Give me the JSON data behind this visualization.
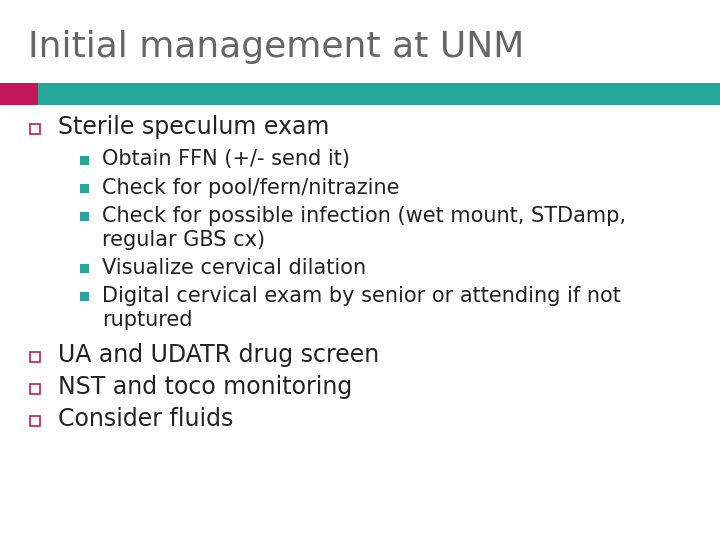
{
  "title": "Initial management at UNM",
  "title_color": "#666666",
  "title_fontsize": 26,
  "bar_pink": "#C2185B",
  "bar_teal": "#26A69A",
  "background_color": "#ffffff",
  "bullet_color": "#555555",
  "text_color": "#222222",
  "subbullet_color": "#26A69A",
  "main_bullet_char": "□",
  "sub_bullet_char": "■",
  "main_fontsize": 17,
  "sub_fontsize": 15,
  "bullet1": "Sterile speculum exam",
  "sub1": "Obtain FFN (+/- send it)",
  "sub2": "Check for pool/fern/nitrazine",
  "sub3a": "Check for possible infection (wet mount, STDamp,",
  "sub3b": "regular GBS cx)",
  "sub4": "Visualize cervical dilation",
  "sub5a": "Digital cervical exam by senior or attending if not",
  "sub5b": "ruptured",
  "bullet2": "UA and UDATR drug screen",
  "bullet3": "NST and toco monitoring",
  "bullet4": "Consider fluids"
}
